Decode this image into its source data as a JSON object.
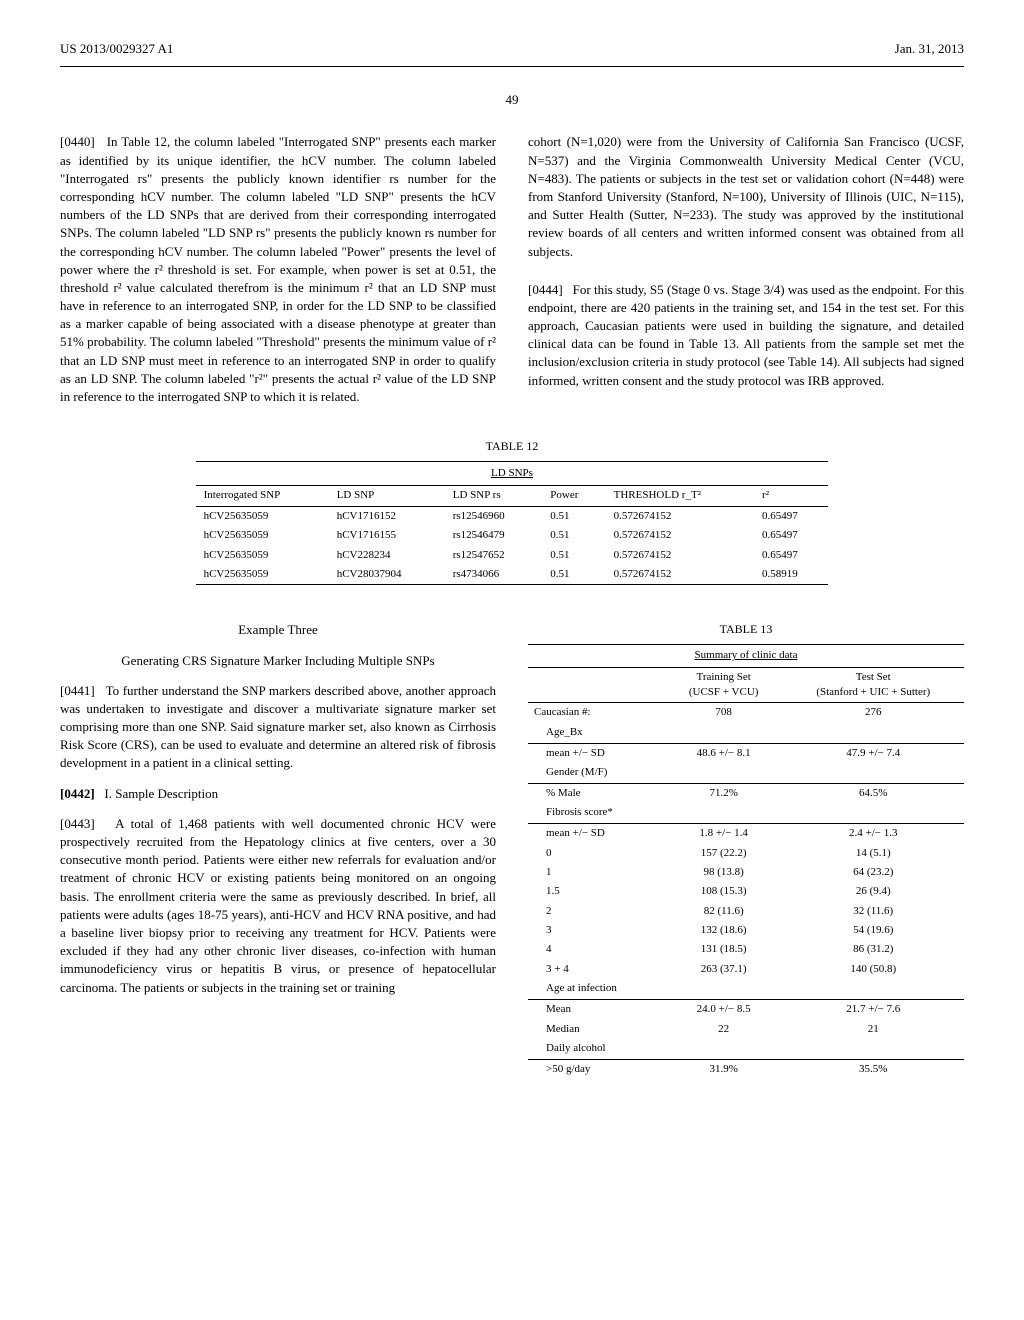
{
  "header": {
    "left": "US 2013/0029327 A1",
    "right": "Jan. 31, 2013"
  },
  "page_number": "49",
  "left_column": {
    "para_0440_label": "[0440]",
    "para_0440": "In Table 12, the column labeled \"Interrogated SNP\" presents each marker as identified by its unique identifier, the hCV number. The column labeled \"Interrogated rs\" presents the publicly known identifier rs number for the corresponding hCV number. The column labeled \"LD SNP\" presents the hCV numbers of the LD SNPs that are derived from their corresponding interrogated SNPs. The column labeled \"LD SNP rs\" presents the publicly known rs number for the corresponding hCV number. The column labeled \"Power\" presents the level of power where the r² threshold is set. For example, when power is set at 0.51, the threshold r² value calculated therefrom is the minimum r² that an LD SNP must have in reference to an interrogated SNP, in order for the LD SNP to be classified as a marker capable of being associated with a disease phenotype at greater than 51% probability. The column labeled \"Threshold\" presents the minimum value of r² that an LD SNP must meet in reference to an interrogated SNP in order to qualify as an LD SNP. The column labeled \"r²\" presents the actual r² value of the LD SNP in reference to the interrogated SNP to which it is related."
  },
  "right_column_top": {
    "para_continuation": "cohort (N=1,020) were from the University of California San Francisco (UCSF, N=537) and the Virginia Commonwealth University Medical Center (VCU, N=483). The patients or subjects in the test set or validation cohort (N=448) were from Stanford University (Stanford, N=100), University of Illinois (UIC, N=115), and Sutter Health (Sutter, N=233). The study was approved by the institutional review boards of all centers and written informed consent was obtained from all subjects.",
    "para_0444_label": "[0444]",
    "para_0444": "For this study, S5 (Stage 0 vs. Stage 3/4) was used as the endpoint. For this endpoint, there are 420 patients in the training set, and 154 in the test set. For this approach, Caucasian patients were used in building the signature, and detailed clinical data can be found in Table 13. All patients from the sample set met the inclusion/exclusion criteria in study protocol (see Table 14). All subjects had signed informed, written consent and the study protocol was IRB approved."
  },
  "table12": {
    "label": "TABLE 12",
    "caption": "LD SNPs",
    "headers": [
      "Interrogated SNP",
      "LD SNP",
      "LD SNP rs",
      "Power",
      "THRESHOLD r_T²",
      "r²"
    ],
    "rows": [
      [
        "hCV25635059",
        "hCV1716152",
        "rs12546960",
        "0.51",
        "0.572674152",
        "0.65497"
      ],
      [
        "hCV25635059",
        "hCV1716155",
        "rs12546479",
        "0.51",
        "0.572674152",
        "0.65497"
      ],
      [
        "hCV25635059",
        "hCV228234",
        "rs12547652",
        "0.51",
        "0.572674152",
        "0.65497"
      ],
      [
        "hCV25635059",
        "hCV28037904",
        "rs4734066",
        "0.51",
        "0.572674152",
        "0.58919"
      ]
    ]
  },
  "example_three": {
    "title": "Example Three",
    "subtitle": "Generating CRS Signature Marker Including Multiple SNPs",
    "para_0441_label": "[0441]",
    "para_0441": "To further understand the SNP markers described above, another approach was undertaken to investigate and discover a multivariate signature marker set comprising more than one SNP. Said signature marker set, also known as Cirrhosis Risk Score (CRS), can be used to evaluate and determine an altered risk of fibrosis development in a patient in a clinical setting.",
    "para_0442_label": "[0442]",
    "para_0442": "I. Sample Description",
    "para_0443_label": "[0443]",
    "para_0443": "A total of 1,468 patients with well documented chronic HCV were prospectively recruited from the Hepatology clinics at five centers, over a 30 consecutive month period. Patients were either new referrals for evaluation and/or treatment of chronic HCV or existing patients being monitored on an ongoing basis. The enrollment criteria were the same as previously described. In brief, all patients were adults (ages 18-75 years), anti-HCV and HCV RNA positive, and had a baseline liver biopsy prior to receiving any treatment for HCV. Patients were excluded if they had any other chronic liver diseases, co-infection with human immunodeficiency virus or hepatitis B virus, or presence of hepatocellular carcinoma. The patients or subjects in the training set or training"
  },
  "table13": {
    "label": "TABLE 13",
    "caption": "Summary of clinic data",
    "col_headers": [
      "",
      "Training Set\n(UCSF + VCU)",
      "Test Set\n(Stanford + UIC + Sutter)"
    ],
    "rows": [
      {
        "label": "Caucasian #:",
        "col1": "708",
        "col2": "276",
        "indent": 0
      },
      {
        "label": "Age_Bx",
        "col1": "",
        "col2": "",
        "indent": 1
      },
      {
        "label": "",
        "col1": "",
        "col2": "",
        "indent": 0
      },
      {
        "label": "mean +/− SD",
        "col1": "48.6 +/− 8.1",
        "col2": "47.9 +/− 7.4",
        "indent": 1
      },
      {
        "label": "Gender (M/F)",
        "col1": "",
        "col2": "",
        "indent": 1
      },
      {
        "label": "",
        "col1": "",
        "col2": "",
        "indent": 0
      },
      {
        "label": "% Male",
        "col1": "71.2%",
        "col2": "64.5%",
        "indent": 1
      },
      {
        "label": "Fibrosis score*",
        "col1": "",
        "col2": "",
        "indent": 1
      },
      {
        "label": "",
        "col1": "",
        "col2": "",
        "indent": 0
      },
      {
        "label": "mean +/− SD",
        "col1": "1.8 +/− 1.4",
        "col2": "2.4 +/− 1.3",
        "indent": 1
      },
      {
        "label": "0",
        "col1": "157 (22.2)",
        "col2": "14 (5.1)",
        "indent": 1
      },
      {
        "label": "1",
        "col1": "98 (13.8)",
        "col2": "64 (23.2)",
        "indent": 1
      },
      {
        "label": "1.5",
        "col1": "108 (15.3)",
        "col2": "26 (9.4)",
        "indent": 1
      },
      {
        "label": "2",
        "col1": "82 (11.6)",
        "col2": "32 (11.6)",
        "indent": 1
      },
      {
        "label": "3",
        "col1": "132 (18.6)",
        "col2": "54 (19.6)",
        "indent": 1
      },
      {
        "label": "4",
        "col1": "131 (18.5)",
        "col2": "86 (31.2)",
        "indent": 1
      },
      {
        "label": "3 + 4",
        "col1": "263 (37.1)",
        "col2": "140 (50.8)",
        "indent": 1
      },
      {
        "label": "Age at infection",
        "col1": "",
        "col2": "",
        "indent": 1
      },
      {
        "label": "",
        "col1": "",
        "col2": "",
        "indent": 0
      },
      {
        "label": "Mean",
        "col1": "24.0 +/− 8.5",
        "col2": "21.7 +/− 7.6",
        "indent": 1
      },
      {
        "label": "Median",
        "col1": "22",
        "col2": "21",
        "indent": 1
      },
      {
        "label": "Daily alcohol",
        "col1": "",
        "col2": "",
        "indent": 1
      },
      {
        "label": "",
        "col1": "",
        "col2": "",
        "indent": 0
      },
      {
        "label": ">50 g/day",
        "col1": "31.9%",
        "col2": "35.5%",
        "indent": 1
      }
    ]
  }
}
